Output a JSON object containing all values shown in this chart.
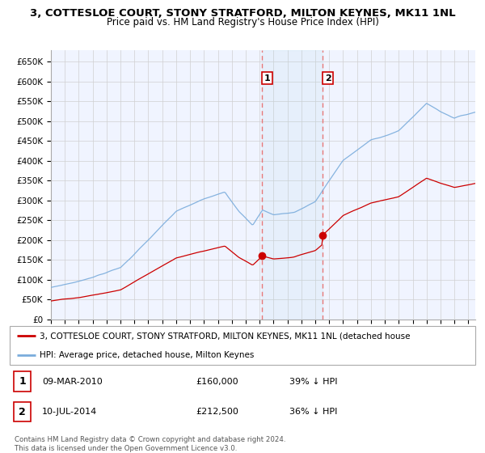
{
  "title": "3, COTTESLOE COURT, STONY STRATFORD, MILTON KEYNES, MK11 1NL",
  "subtitle": "Price paid vs. HM Land Registry's House Price Index (HPI)",
  "ytick_labels": [
    "£0",
    "£50K",
    "£100K",
    "£150K",
    "£200K",
    "£250K",
    "£300K",
    "£350K",
    "£400K",
    "£450K",
    "£500K",
    "£550K",
    "£600K",
    "£650K"
  ],
  "yticks": [
    0,
    50000,
    100000,
    150000,
    200000,
    250000,
    300000,
    350000,
    400000,
    450000,
    500000,
    550000,
    600000,
    650000
  ],
  "sale1_x": 2010.18,
  "sale1_y": 160000,
  "sale2_x": 2014.53,
  "sale2_y": 212500,
  "hpi_color": "#7aacdc",
  "sale_color": "#cc0000",
  "vline_color": "#e87878",
  "background_color": "#ffffff",
  "grid_color": "#d0d0d0",
  "legend_line1": "3, COTTESLOE COURT, STONY STRATFORD, MILTON KEYNES, MK11 1NL (detached house",
  "legend_line2": "HPI: Average price, detached house, Milton Keynes",
  "table_row1": [
    "1",
    "09-MAR-2010",
    "£160,000",
    "39% ↓ HPI"
  ],
  "table_row2": [
    "2",
    "10-JUL-2014",
    "£212,500",
    "36% ↓ HPI"
  ],
  "footnote": "Contains HM Land Registry data © Crown copyright and database right 2024.\nThis data is licensed under the Open Government Licence v3.0.",
  "xmin": 1995,
  "xmax": 2025.5,
  "ymin": 0,
  "ymax": 680000
}
